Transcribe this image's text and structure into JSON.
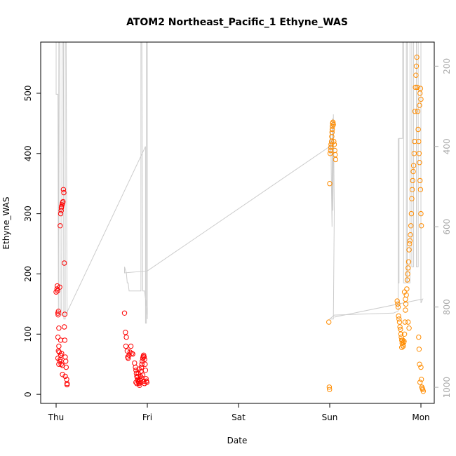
{
  "chart_data": {
    "type": "scatter",
    "title": "ATOM2 Northeast_Pacific_1 Ethyne_WAS",
    "xlabel": "Date",
    "ylabel": "Ethyne_WAS",
    "x_tick_labels": [
      "Thu",
      "Fri",
      "Sat",
      "Sun",
      "Mon"
    ],
    "xlim": [
      0,
      4.1
    ],
    "ylim": [
      -15,
      585
    ],
    "y_ticks": [
      0,
      100,
      200,
      300,
      400,
      500
    ],
    "y2_label": "",
    "y2_ticks": [
      200,
      400,
      600,
      800,
      1000
    ],
    "y2lim": [
      1040,
      140
    ],
    "y2_reversed": true,
    "grid": false,
    "legend": "none",
    "series": [
      {
        "color": "#ff0000",
        "points": [
          [
            0.0,
            170
          ],
          [
            0.01,
            175
          ],
          [
            0.012,
            180
          ],
          [
            0.015,
            172
          ],
          [
            0.02,
            135
          ],
          [
            0.022,
            132
          ],
          [
            0.025,
            138
          ],
          [
            0.03,
            110
          ],
          [
            0.02,
            95
          ],
          [
            0.03,
            80
          ],
          [
            0.035,
            70
          ],
          [
            0.025,
            72
          ],
          [
            0.02,
            60
          ],
          [
            0.03,
            50
          ],
          [
            0.04,
            55
          ],
          [
            0.05,
            65
          ],
          [
            0.06,
            68
          ],
          [
            0.07,
            48
          ],
          [
            0.055,
            50
          ],
          [
            0.045,
            58
          ],
          [
            0.05,
            90
          ],
          [
            0.04,
            178
          ],
          [
            0.045,
            280
          ],
          [
            0.05,
            300
          ],
          [
            0.055,
            305
          ],
          [
            0.058,
            310
          ],
          [
            0.06,
            312
          ],
          [
            0.065,
            315
          ],
          [
            0.07,
            318
          ],
          [
            0.075,
            320
          ],
          [
            0.08,
            340
          ],
          [
            0.085,
            335
          ],
          [
            0.09,
            218
          ],
          [
            0.095,
            133
          ],
          [
            0.09,
            112
          ],
          [
            0.095,
            90
          ],
          [
            0.1,
            62
          ],
          [
            0.105,
            55
          ],
          [
            0.11,
            45
          ],
          [
            0.1,
            30
          ],
          [
            0.115,
            25
          ],
          [
            0.12,
            18
          ],
          [
            0.12,
            16
          ],
          [
            0.07,
            33
          ],
          [
            0.75,
            135
          ],
          [
            0.76,
            103
          ],
          [
            0.77,
            95
          ],
          [
            0.765,
            80
          ],
          [
            0.78,
            72
          ],
          [
            0.785,
            62
          ],
          [
            0.79,
            60
          ],
          [
            0.8,
            65
          ],
          [
            0.81,
            70
          ],
          [
            0.82,
            80
          ],
          [
            0.83,
            68
          ],
          [
            0.84,
            67
          ],
          [
            0.86,
            52
          ],
          [
            0.87,
            45
          ],
          [
            0.875,
            40
          ],
          [
            0.88,
            35
          ],
          [
            0.885,
            30
          ],
          [
            0.89,
            28
          ],
          [
            0.895,
            25
          ],
          [
            0.9,
            22
          ],
          [
            0.905,
            20
          ],
          [
            0.91,
            18
          ],
          [
            0.915,
            15
          ],
          [
            0.92,
            24
          ],
          [
            0.925,
            30
          ],
          [
            0.93,
            38
          ],
          [
            0.935,
            45
          ],
          [
            0.94,
            50
          ],
          [
            0.945,
            55
          ],
          [
            0.95,
            60
          ],
          [
            0.955,
            63
          ],
          [
            0.96,
            65
          ],
          [
            0.965,
            62
          ],
          [
            0.97,
            58
          ],
          [
            0.975,
            50
          ],
          [
            0.98,
            40
          ],
          [
            0.985,
            26
          ],
          [
            0.99,
            22
          ],
          [
            0.995,
            20
          ],
          [
            0.96,
            22
          ],
          [
            0.97,
            18
          ],
          [
            0.93,
            20
          ],
          [
            0.94,
            27
          ],
          [
            0.95,
            32
          ],
          [
            0.875,
            20
          ],
          [
            0.885,
            18
          ],
          [
            0.9,
            35
          ],
          [
            0.91,
            42
          ]
        ]
      },
      {
        "color": "#ff8c00",
        "points": [
          [
            2.99,
            120
          ],
          [
            2.995,
            12
          ],
          [
            2.998,
            8
          ],
          [
            3.0,
            350
          ],
          [
            3.005,
            400
          ],
          [
            3.01,
            405
          ],
          [
            3.012,
            410
          ],
          [
            3.015,
            415
          ],
          [
            3.02,
            420
          ],
          [
            3.022,
            428
          ],
          [
            3.025,
            435
          ],
          [
            3.028,
            440
          ],
          [
            3.03,
            445
          ],
          [
            3.032,
            450
          ],
          [
            3.035,
            452
          ],
          [
            3.04,
            448
          ],
          [
            3.045,
            420
          ],
          [
            3.05,
            415
          ],
          [
            3.055,
            405
          ],
          [
            3.06,
            398
          ],
          [
            3.065,
            390
          ],
          [
            3.74,
            155
          ],
          [
            3.745,
            150
          ],
          [
            3.75,
            145
          ],
          [
            3.755,
            130
          ],
          [
            3.76,
            125
          ],
          [
            3.765,
            120
          ],
          [
            3.77,
            112
          ],
          [
            3.775,
            108
          ],
          [
            3.78,
            100
          ],
          [
            3.785,
            95
          ],
          [
            3.79,
            90
          ],
          [
            3.795,
            85
          ],
          [
            3.8,
            82
          ],
          [
            3.805,
            80
          ],
          [
            3.81,
            86
          ],
          [
            3.815,
            88
          ],
          [
            3.82,
            100
          ],
          [
            3.825,
            120
          ],
          [
            3.83,
            140
          ],
          [
            3.835,
            150
          ],
          [
            3.84,
            165
          ],
          [
            3.845,
            175
          ],
          [
            3.85,
            190
          ],
          [
            3.855,
            200
          ],
          [
            3.86,
            210
          ],
          [
            3.865,
            220
          ],
          [
            3.87,
            240
          ],
          [
            3.875,
            250
          ],
          [
            3.88,
            255
          ],
          [
            3.885,
            265
          ],
          [
            3.89,
            280
          ],
          [
            3.895,
            300
          ],
          [
            3.9,
            325
          ],
          [
            3.905,
            340
          ],
          [
            3.91,
            355
          ],
          [
            3.915,
            370
          ],
          [
            3.92,
            380
          ],
          [
            3.925,
            400
          ],
          [
            3.93,
            420
          ],
          [
            3.935,
            470
          ],
          [
            3.94,
            510
          ],
          [
            3.945,
            530
          ],
          [
            3.95,
            545
          ],
          [
            3.955,
            560
          ],
          [
            3.96,
            510
          ],
          [
            3.965,
            470
          ],
          [
            3.97,
            440
          ],
          [
            3.975,
            420
          ],
          [
            3.98,
            400
          ],
          [
            3.985,
            385
          ],
          [
            3.99,
            355
          ],
          [
            3.995,
            340
          ],
          [
            4.0,
            300
          ],
          [
            4.005,
            280
          ],
          [
            3.985,
            480
          ],
          [
            3.99,
            500
          ],
          [
            3.995,
            508
          ],
          [
            4.0,
            490
          ],
          [
            3.975,
            95
          ],
          [
            3.98,
            75
          ],
          [
            3.985,
            50
          ],
          [
            3.99,
            20
          ],
          [
            4.0,
            45
          ],
          [
            4.005,
            25
          ],
          [
            4.01,
            12
          ],
          [
            4.015,
            10
          ],
          [
            4.02,
            8
          ],
          [
            4.025,
            5
          ],
          [
            3.82,
            170
          ],
          [
            3.83,
            158
          ],
          [
            3.8,
            90
          ],
          [
            3.79,
            78
          ],
          [
            3.86,
            120
          ],
          [
            3.87,
            110
          ]
        ]
      }
    ],
    "overlay_line": {
      "color": "#cccccc",
      "axis": "y2",
      "points": [
        [
          0.0,
          140
        ],
        [
          0.0,
          270
        ],
        [
          0.02,
          270
        ],
        [
          0.025,
          820
        ],
        [
          0.03,
          140
        ],
        [
          0.04,
          140
        ],
        [
          0.045,
          820
        ],
        [
          0.06,
          820
        ],
        [
          0.065,
          140
        ],
        [
          0.08,
          140
        ],
        [
          0.085,
          830
        ],
        [
          0.1,
          830
        ],
        [
          0.1,
          140
        ],
        [
          0.11,
          140
        ],
        [
          0.12,
          820
        ],
        [
          0.125,
          810
        ],
        [
          0.98,
          400
        ],
        [
          0.98,
          840
        ],
        [
          0.99,
          840
        ],
        [
          0.99,
          140
        ],
        [
          1.0,
          140
        ],
        [
          1.0,
          830
        ],
        [
          1.0,
          820
        ],
        [
          0.97,
          760
        ],
        [
          0.95,
          760
        ],
        [
          0.94,
          140
        ],
        [
          0.93,
          140
        ],
        [
          0.93,
          760
        ],
        [
          0.85,
          760
        ],
        [
          0.82,
          760
        ],
        [
          0.81,
          760
        ],
        [
          0.8,
          760
        ],
        [
          0.79,
          740
        ],
        [
          0.78,
          740
        ],
        [
          0.77,
          715
        ],
        [
          0.75,
          700
        ],
        [
          0.75,
          715
        ],
        [
          1.0,
          710
        ],
        [
          3.0,
          400
        ],
        [
          3.0,
          420
        ],
        [
          3.01,
          340
        ],
        [
          3.02,
          520
        ],
        [
          3.025,
          600
        ],
        [
          3.03,
          330
        ],
        [
          3.035,
          560
        ],
        [
          3.04,
          320
        ],
        [
          3.05,
          560
        ],
        [
          3.04,
          830
        ],
        [
          3.0,
          830
        ],
        [
          3.05,
          820
        ],
        [
          3.7,
          815
        ],
        [
          3.75,
          810
        ],
        [
          3.75,
          380
        ],
        [
          3.75,
          740
        ],
        [
          3.76,
          740
        ],
        [
          3.76,
          380
        ],
        [
          3.8,
          380
        ],
        [
          3.8,
          140
        ],
        [
          3.81,
          140
        ],
        [
          3.81,
          740
        ],
        [
          3.84,
          740
        ],
        [
          3.84,
          140
        ],
        [
          3.85,
          140
        ],
        [
          3.85,
          740
        ],
        [
          3.88,
          740
        ],
        [
          3.88,
          140
        ],
        [
          3.9,
          140
        ],
        [
          3.9,
          700
        ],
        [
          3.92,
          700
        ],
        [
          3.92,
          140
        ],
        [
          3.95,
          140
        ],
        [
          3.95,
          700
        ],
        [
          3.97,
          700
        ],
        [
          3.97,
          140
        ],
        [
          4.0,
          140
        ],
        [
          4.0,
          760
        ],
        [
          4.0,
          790
        ],
        [
          4.02,
          780
        ],
        [
          3.05,
          825
        ]
      ]
    }
  }
}
